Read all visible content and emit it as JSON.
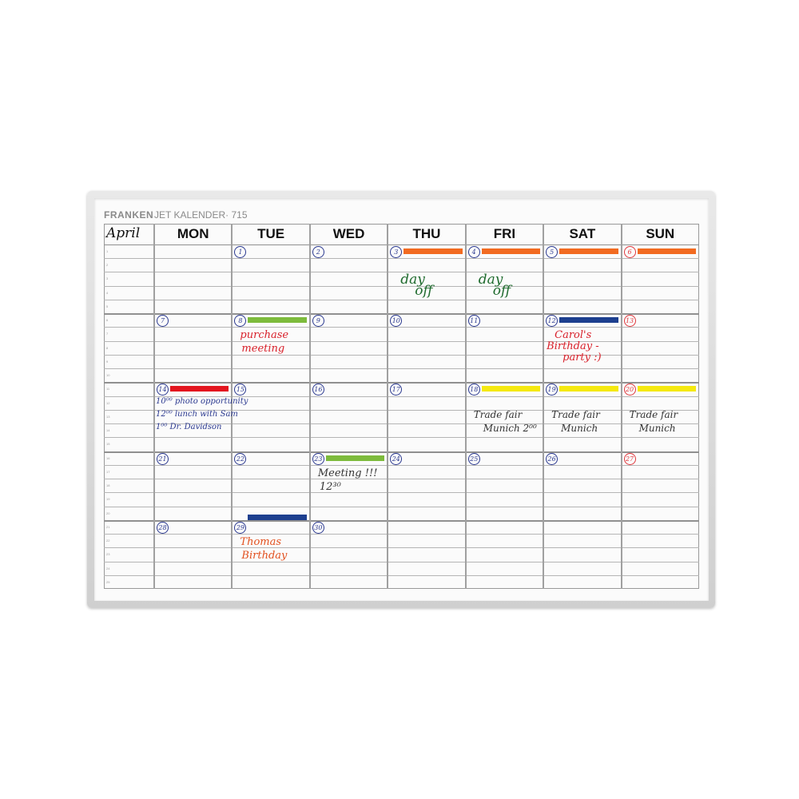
{
  "brand": "FRANKEN",
  "model": "JET KALENDER· 715",
  "month": "April",
  "days": [
    "MON",
    "TUE",
    "WED",
    "THU",
    "FRI",
    "SAT",
    "SUN"
  ],
  "row_numbers": [
    "1",
    "2",
    "3",
    "4",
    "5",
    "6",
    "7",
    "8",
    "9",
    "10",
    "11",
    "12",
    "13",
    "14",
    "15",
    "16",
    "17",
    "18",
    "19",
    "20",
    "21",
    "22",
    "23",
    "24",
    "25"
  ],
  "weeks": [
    [
      null,
      "1",
      "2",
      "3",
      "4",
      "5",
      "6"
    ],
    [
      "7",
      "8",
      "9",
      "10",
      "11",
      "12",
      "13"
    ],
    [
      "14",
      "15",
      "16",
      "17",
      "18",
      "19",
      "20"
    ],
    [
      "21",
      "22",
      "23",
      "24",
      "25",
      "26",
      "27"
    ],
    [
      "28",
      "29",
      "30",
      null,
      null,
      null,
      null
    ]
  ],
  "colors": {
    "date_ink": "#2b3990",
    "sunday_ink": "#e0393e",
    "orange": "#f26b21",
    "green": "#7dbb3c",
    "blue": "#1d3f8f",
    "red": "#e3161f",
    "yellow": "#f5e90f"
  },
  "bars": [
    {
      "date": "3",
      "color": "orange"
    },
    {
      "date": "4",
      "color": "orange"
    },
    {
      "date": "5",
      "color": "orange"
    },
    {
      "date": "6",
      "color": "orange"
    },
    {
      "date": "8",
      "color": "green"
    },
    {
      "date": "12",
      "color": "blue"
    },
    {
      "date": "14",
      "color": "red"
    },
    {
      "date": "18",
      "color": "yellow"
    },
    {
      "date": "19",
      "color": "yellow"
    },
    {
      "date": "20",
      "color": "yellow"
    },
    {
      "date": "23",
      "color": "green"
    },
    {
      "date": "29",
      "color": "blue"
    }
  ],
  "notes": [
    {
      "date": "3",
      "lines": [
        "day",
        "off"
      ],
      "ink": "#1f6b2e"
    },
    {
      "date": "4",
      "lines": [
        "day",
        "off"
      ],
      "ink": "#1f6b2e"
    },
    {
      "date": "8",
      "lines": [
        "purchase",
        "meeting"
      ],
      "ink": "#d8202a"
    },
    {
      "date": "12",
      "lines": [
        "Carol's",
        "Birthday -",
        "party :)"
      ],
      "ink": "#d8202a"
    },
    {
      "date": "14",
      "lines": [
        "10⁰⁰ photo opportunity",
        "12⁰⁰ lunch with Sam",
        "1⁰⁰ Dr. Davidson"
      ],
      "ink": "#2b3990"
    },
    {
      "date": "18",
      "lines": [
        "Trade fair",
        "Munich 2⁰⁰"
      ],
      "ink": "#333333"
    },
    {
      "date": "19",
      "lines": [
        "Trade fair",
        "Munich"
      ],
      "ink": "#333333"
    },
    {
      "date": "20",
      "lines": [
        "Trade fair",
        "Munich"
      ],
      "ink": "#333333"
    },
    {
      "date": "23",
      "lines": [
        "Meeting !!!",
        "12³⁰"
      ],
      "ink": "#333333"
    },
    {
      "date": "29",
      "lines": [
        "Thomas",
        "Birthday"
      ],
      "ink": "#e2501f"
    }
  ]
}
